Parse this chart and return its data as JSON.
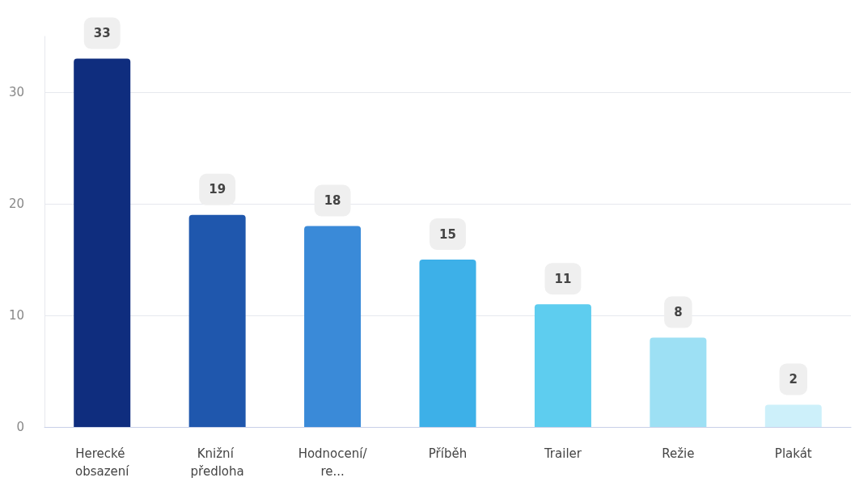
{
  "chart_data": {
    "type": "bar",
    "categories": [
      "Herecké obsazení",
      "Knižní předloha",
      "Hodnocení/re...",
      "Příběh",
      "Trailer",
      "Režie",
      "Plakát"
    ],
    "values": [
      33,
      19,
      18,
      15,
      11,
      8,
      2
    ],
    "colors": [
      "#0f2d7e",
      "#1f57ad",
      "#3a8ad8",
      "#3db0e8",
      "#5ecdef",
      "#9de0f4",
      "#cdf0fa"
    ],
    "ylim": [
      0,
      35
    ],
    "yticks": [
      0,
      10,
      20,
      30
    ],
    "grid": "y",
    "data_labels": true
  }
}
